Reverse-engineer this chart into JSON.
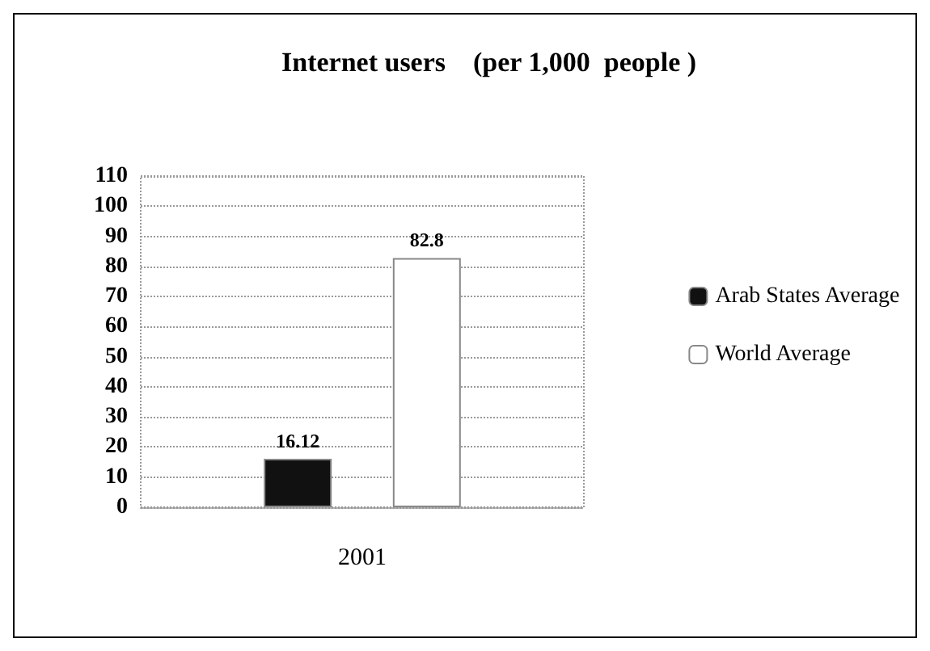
{
  "chart_data": {
    "type": "bar",
    "title": "Internet users    (per 1,000  people )",
    "categories": [
      "2001"
    ],
    "series": [
      {
        "name": "Arab States Average",
        "color": "#111111",
        "values": [
          16.12
        ]
      },
      {
        "name": "World Average",
        "color": "#ffffff",
        "values": [
          82.8
        ]
      }
    ],
    "ylim": [
      0,
      110
    ],
    "yticks": [
      0,
      10,
      20,
      30,
      40,
      50,
      60,
      70,
      80,
      90,
      100,
      110
    ],
    "grid": "y",
    "legend": "right",
    "data_labels": true
  }
}
